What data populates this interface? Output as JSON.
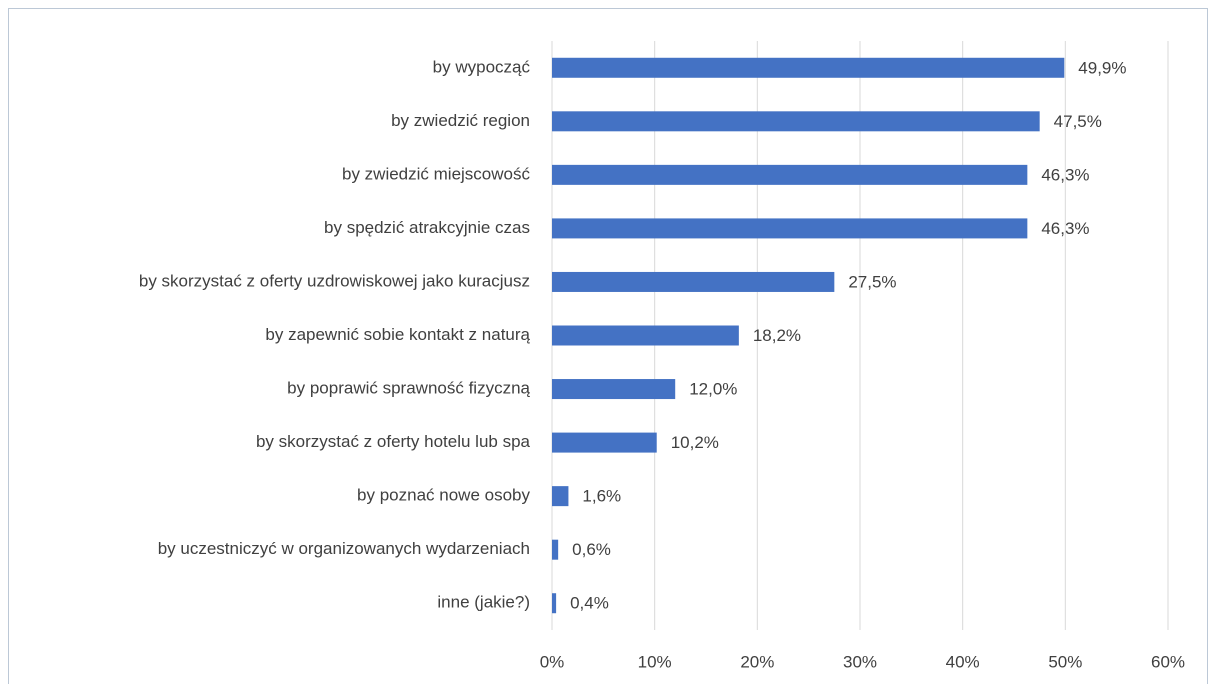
{
  "chart_data": {
    "type": "bar",
    "orientation": "horizontal",
    "categories": [
      "by wypocząć",
      "by zwiedzić region",
      "by zwiedzić miejscowość",
      "by spędzić atrakcyjnie czas",
      "by skorzystać z oferty uzdrowiskowej jako kuracjusz",
      "by zapewnić sobie kontakt z naturą",
      "by poprawić sprawność fizyczną",
      "by skorzystać z oferty hotelu lub spa",
      "by poznać nowe osoby",
      "by uczestniczyć w organizowanych wydarzeniach",
      "inne (jakie?)"
    ],
    "values": [
      49.9,
      47.5,
      46.3,
      46.3,
      27.5,
      18.2,
      12.0,
      10.2,
      1.6,
      0.6,
      0.4
    ],
    "value_labels": [
      "49,9%",
      "47,5%",
      "46,3%",
      "46,3%",
      "27,5%",
      "18,2%",
      "12,0%",
      "10,2%",
      "1,6%",
      "0,6%",
      "0,4%"
    ],
    "color": "#4472c4",
    "xlim": [
      0,
      60
    ],
    "xticks": [
      {
        "value": 0,
        "label": "0%"
      },
      {
        "value": 10,
        "label": "10%"
      },
      {
        "value": 20,
        "label": "20%"
      },
      {
        "value": 30,
        "label": "30%"
      },
      {
        "value": 40,
        "label": "40%"
      },
      {
        "value": 50,
        "label": "50%"
      },
      {
        "value": 60,
        "label": "60%"
      }
    ],
    "grid": true
  }
}
